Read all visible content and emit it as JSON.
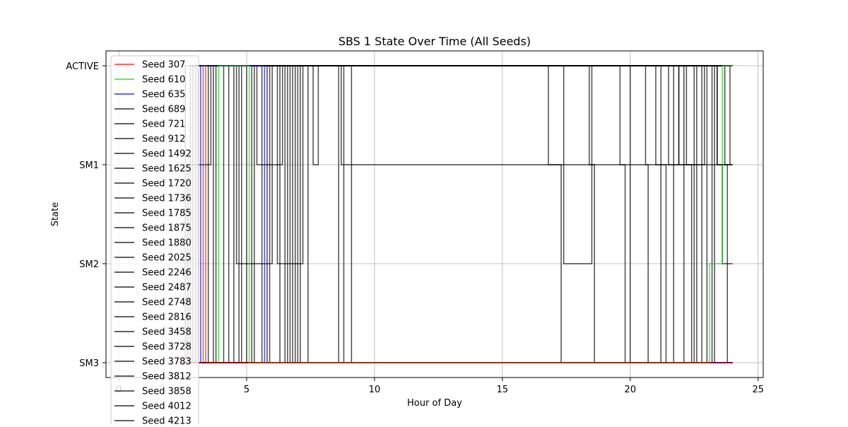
{
  "chart_data": {
    "type": "line",
    "title": "SBS 1 State Over Time (All Seeds)",
    "xlabel": "Hour of Day",
    "ylabel": "State",
    "xlim": [
      -0.5,
      25.2
    ],
    "xticks": [
      0,
      5,
      10,
      15,
      20,
      25
    ],
    "y_categories": [
      "SM3",
      "SM2",
      "SM1",
      "ACTIVE"
    ],
    "grid": true,
    "legend_position": "top-left",
    "series_colors": {
      "Seed 307": "#ff0000",
      "Seed 610": "#00dd00",
      "Seed 635": "#0000ff",
      "default": "#000000"
    },
    "series": [
      {
        "name": "Seed 307",
        "color": "#ff0000",
        "x": [
          2.5,
          3.3,
          3.3,
          3.4,
          3.4,
          24.0
        ],
        "y": [
          "SM3",
          "SM3",
          "ACTIVE",
          "ACTIVE",
          "SM3",
          "SM3"
        ]
      },
      {
        "name": "Seed 610",
        "color": "#00dd00",
        "x": [
          3.9,
          3.9,
          5.1,
          5.1,
          23.1,
          23.1,
          23.6,
          23.6,
          24.0
        ],
        "y": [
          "SM3",
          "ACTIVE",
          "ACTIVE",
          "SM3",
          "SM3",
          "SM2",
          "SM2",
          "ACTIVE",
          "ACTIVE"
        ]
      },
      {
        "name": "Seed 635",
        "color": "#0000ff",
        "x": [
          3.2,
          3.2,
          5.7,
          5.7,
          24.0
        ],
        "y": [
          "SM3",
          "ACTIVE",
          "ACTIVE",
          "SM3",
          "SM3"
        ]
      },
      {
        "name": "Seed 689",
        "color": "#000000",
        "x": [
          2.5,
          5.0,
          5.0,
          5.8,
          5.8,
          7.4,
          7.4,
          9.1,
          9.1,
          24.0
        ],
        "y": [
          "SM3",
          "SM3",
          "ACTIVE",
          "ACTIVE",
          "SM3",
          "SM3",
          "ACTIVE",
          "ACTIVE",
          "SM3",
          "SM3"
        ]
      },
      {
        "name": "Seed 721",
        "color": "#000000",
        "x": [
          2.5,
          2.6,
          2.6,
          8.6,
          8.6,
          8.8,
          8.8,
          16.8,
          16.8,
          17.3,
          17.3,
          24.0
        ],
        "y": [
          "SM3",
          "SM3",
          "ACTIVE",
          "ACTIVE",
          "SM3",
          "SM3",
          "ACTIVE",
          "ACTIVE",
          "SM1",
          "SM1",
          "SM3",
          "SM3"
        ]
      },
      {
        "name": "Seed 912",
        "color": "#000000",
        "x": [
          2.5,
          2.7,
          2.7,
          3.6,
          3.6,
          4.6,
          4.6,
          6.0,
          6.0,
          24.0
        ],
        "y": [
          "SM3",
          "SM3",
          "SM1",
          "SM1",
          "ACTIVE",
          "ACTIVE",
          "SM2",
          "SM2",
          "ACTIVE",
          "ACTIVE"
        ]
      },
      {
        "name": "Seed 1492",
        "color": "#000000",
        "x": [
          2.5,
          2.8,
          2.8,
          17.4,
          17.4,
          18.5,
          18.5,
          24.0
        ],
        "y": [
          "SM3",
          "SM3",
          "ACTIVE",
          "ACTIVE",
          "SM2",
          "SM2",
          "ACTIVE",
          "ACTIVE"
        ]
      },
      {
        "name": "Seed 1625",
        "color": "#000000",
        "x": [
          2.5,
          4.1,
          4.1,
          6.2,
          6.2,
          7.2,
          7.2,
          18.4,
          18.4,
          18.6,
          18.6,
          24.0
        ],
        "y": [
          "SM3",
          "SM3",
          "ACTIVE",
          "ACTIVE",
          "SM2",
          "SM2",
          "ACTIVE",
          "ACTIVE",
          "SM1",
          "SM1",
          "SM3",
          "SM3"
        ]
      },
      {
        "name": "Seed 1720",
        "color": "#000000",
        "x": [
          2.5,
          2.9,
          2.9,
          19.6,
          19.6,
          19.8,
          19.8,
          24.0
        ],
        "y": [
          "SM3",
          "SM3",
          "ACTIVE",
          "ACTIVE",
          "SM1",
          "SM1",
          "SM3",
          "SM3"
        ]
      },
      {
        "name": "Seed 1736",
        "color": "#000000",
        "x": [
          2.5,
          3.0,
          3.0,
          5.4,
          5.4,
          6.4,
          6.4,
          24.0
        ],
        "y": [
          "SM3",
          "SM3",
          "ACTIVE",
          "ACTIVE",
          "SM1",
          "SM1",
          "ACTIVE",
          "ACTIVE"
        ]
      },
      {
        "name": "Seed 1785",
        "color": "#000000",
        "x": [
          2.5,
          3.1,
          3.1,
          20.6,
          20.6,
          20.7,
          20.7,
          24.0
        ],
        "y": [
          "SM3",
          "SM3",
          "ACTIVE",
          "ACTIVE",
          "SM1",
          "SM1",
          "SM3",
          "SM3"
        ]
      },
      {
        "name": "Seed 1875",
        "color": "#000000",
        "x": [
          2.5,
          3.5,
          3.5,
          7.6,
          7.6,
          7.8,
          7.8,
          21.0,
          21.0,
          21.2,
          21.2,
          24.0
        ],
        "y": [
          "SM3",
          "SM3",
          "ACTIVE",
          "ACTIVE",
          "SM1",
          "SM1",
          "ACTIVE",
          "ACTIVE",
          "SM1",
          "SM1",
          "SM3",
          "SM3"
        ]
      },
      {
        "name": "Seed 1880",
        "color": "#000000",
        "x": [
          2.5,
          3.7,
          3.7,
          6.6,
          6.6,
          6.9,
          6.9,
          21.2,
          21.2,
          21.4,
          21.4,
          24.0
        ],
        "y": [
          "SM3",
          "SM3",
          "ACTIVE",
          "ACTIVE",
          "SM3",
          "SM3",
          "ACTIVE",
          "ACTIVE",
          "SM1",
          "SM1",
          "SM3",
          "SM3"
        ]
      },
      {
        "name": "Seed 2025",
        "color": "#000000",
        "x": [
          2.5,
          4.3,
          4.3,
          7.0,
          7.0,
          21.7,
          21.7,
          21.9,
          21.9,
          24.0
        ],
        "y": [
          "SM3",
          "SM3",
          "ACTIVE",
          "ACTIVE",
          "SM3",
          "SM3",
          "ACTIVE",
          "ACTIVE",
          "SM1",
          "SM1"
        ]
      },
      {
        "name": "Seed 2246",
        "color": "#000000",
        "x": [
          2.5,
          4.5,
          4.5,
          8.7,
          8.7,
          21.9,
          21.9,
          22.1,
          22.1,
          24.0
        ],
        "y": [
          "SM3",
          "SM3",
          "ACTIVE",
          "ACTIVE",
          "SM1",
          "SM1",
          "ACTIVE",
          "ACTIVE",
          "SM3",
          "SM3"
        ]
      },
      {
        "name": "Seed 2487",
        "color": "#000000",
        "x": [
          2.5,
          4.8,
          4.8,
          22.2,
          22.2,
          22.4,
          22.4,
          24.0
        ],
        "y": [
          "SM3",
          "SM3",
          "ACTIVE",
          "ACTIVE",
          "SM1",
          "SM1",
          "SM3",
          "SM3"
        ]
      },
      {
        "name": "Seed 2748",
        "color": "#000000",
        "x": [
          2.5,
          5.2,
          5.2,
          6.8,
          6.8,
          22.5,
          22.5,
          22.6,
          22.6,
          24.0
        ],
        "y": [
          "SM3",
          "SM3",
          "ACTIVE",
          "ACTIVE",
          "SM3",
          "SM3",
          "ACTIVE",
          "ACTIVE",
          "SM3",
          "SM3"
        ]
      },
      {
        "name": "Seed 2816",
        "color": "#000000",
        "x": [
          2.5,
          5.6,
          5.6,
          20.0,
          20.0,
          24.0
        ],
        "y": [
          "SM3",
          "SM3",
          "ACTIVE",
          "ACTIVE",
          "SM3",
          "SM3"
        ]
      },
      {
        "name": "Seed 3458",
        "color": "#000000",
        "x": [
          2.5,
          5.9,
          5.9,
          21.5,
          21.5,
          22.9,
          22.9,
          24.0
        ],
        "y": [
          "SM3",
          "SM3",
          "ACTIVE",
          "ACTIVE",
          "SM1",
          "SM1",
          "ACTIVE",
          "ACTIVE"
        ]
      },
      {
        "name": "Seed 3728",
        "color": "#000000",
        "x": [
          2.5,
          6.3,
          6.3,
          22.8,
          22.8,
          23.3,
          23.3,
          23.4,
          23.4,
          24.0
        ],
        "y": [
          "SM3",
          "SM3",
          "ACTIVE",
          "ACTIVE",
          "SM3",
          "SM3",
          "ACTIVE",
          "ACTIVE",
          "SM1",
          "SM1"
        ]
      },
      {
        "name": "Seed 3783",
        "color": "#000000",
        "x": [
          2.5,
          6.7,
          6.7,
          23.4,
          23.4,
          23.6,
          23.6,
          24.0
        ],
        "y": [
          "SM3",
          "SM3",
          "ACTIVE",
          "ACTIVE",
          "SM1",
          "SM1",
          "SM2",
          "SM2"
        ]
      },
      {
        "name": "Seed 3812",
        "color": "#000000",
        "x": [
          2.5,
          7.1,
          7.1,
          23.7,
          23.7,
          23.8,
          23.8,
          24.0
        ],
        "y": [
          "SM3",
          "SM3",
          "ACTIVE",
          "ACTIVE",
          "SM1",
          "SM1",
          "SM3",
          "SM3"
        ]
      },
      {
        "name": "Seed 3858",
        "color": "#000000",
        "x": [
          2.5,
          4.7,
          4.7,
          23.0,
          23.0,
          23.2,
          23.2,
          24.0
        ],
        "y": [
          "SM3",
          "SM3",
          "ACTIVE",
          "ACTIVE",
          "SM3",
          "SM3",
          "ACTIVE",
          "ACTIVE"
        ]
      },
      {
        "name": "Seed 4012",
        "color": "#000000",
        "x": [
          2.5,
          3.8,
          3.8,
          23.9,
          23.9,
          24.0
        ],
        "y": [
          "SM3",
          "SM3",
          "ACTIVE",
          "ACTIVE",
          "SM1",
          "SM1"
        ]
      },
      {
        "name": "Seed 4213",
        "color": "#000000",
        "x": [
          2.5,
          5.3,
          5.3,
          6.5,
          6.5,
          24.0
        ],
        "y": [
          "SM3",
          "SM3",
          "ACTIVE",
          "ACTIVE",
          "SM3",
          "SM3"
        ]
      }
    ]
  }
}
